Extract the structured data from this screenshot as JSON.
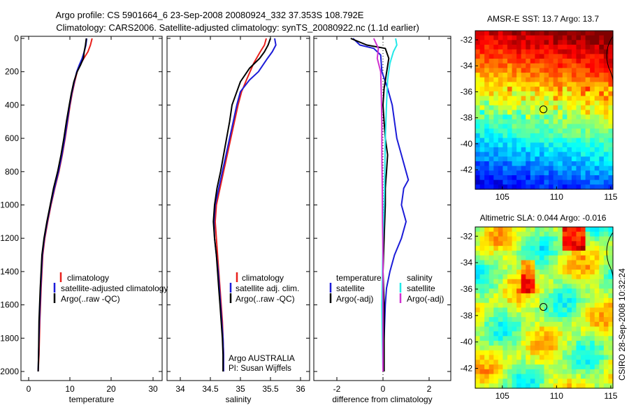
{
  "header": {
    "title_line1": "Argo profile: CS 5901664_6 23-Sep-2008 20080924_332 37.353S 108.792E",
    "title_line2": "Climatology: CARS2006. Satellite-adjusted climatology: synTS_20080922.nc (1.1d earlier)"
  },
  "side_label": "CSIRO 28-Sep-2008 10:32:24",
  "colors": {
    "red": "#e8201c",
    "blue": "#1c1cd8",
    "black": "#000000",
    "cyan": "#22e8e8",
    "magenta": "#d030d0"
  },
  "chart_data": [
    {
      "id": "temperature",
      "type": "line",
      "xlabel": "temperature",
      "ylabel": "",
      "xlim": [
        -2,
        31
      ],
      "ylim": [
        2050,
        0
      ],
      "xticks": [
        "0",
        "10",
        "20",
        "30"
      ],
      "yticks": [
        "0",
        "200",
        "400",
        "600",
        "800",
        "1000",
        "1200",
        "1400",
        "1600",
        "1800",
        "2000"
      ],
      "legend": [
        "climatology",
        "satellite-adjusted climatology",
        "Argo(..raw -QC)"
      ],
      "series": [
        {
          "name": "climatology",
          "color": "red",
          "points": [
            [
              15.3,
              0
            ],
            [
              14.9,
              40
            ],
            [
              14.3,
              80
            ],
            [
              13.3,
              120
            ],
            [
              12.4,
              160
            ],
            [
              11.7,
              200
            ],
            [
              11.1,
              260
            ],
            [
              10.5,
              330
            ],
            [
              10,
              400
            ],
            [
              9.4,
              500
            ],
            [
              8.8,
              600
            ],
            [
              8.1,
              700
            ],
            [
              7.3,
              800
            ],
            [
              6.3,
              900
            ],
            [
              5.4,
              1000
            ],
            [
              4.6,
              1100
            ],
            [
              3.9,
              1200
            ],
            [
              3.4,
              1300
            ],
            [
              3.0,
              1500
            ],
            [
              2.7,
              1700
            ],
            [
              2.5,
              1900
            ],
            [
              2.3,
              2000
            ]
          ]
        },
        {
          "name": "satellite-adjusted climatology",
          "color": "blue",
          "points": [
            [
              14.0,
              0
            ],
            [
              13.8,
              40
            ],
            [
              13.4,
              80
            ],
            [
              12.9,
              120
            ],
            [
              12.2,
              160
            ],
            [
              11.6,
              200
            ],
            [
              11.0,
              260
            ],
            [
              10.4,
              330
            ],
            [
              9.9,
              400
            ],
            [
              9.3,
              500
            ],
            [
              8.7,
              600
            ],
            [
              8.0,
              700
            ],
            [
              7.2,
              800
            ],
            [
              6.2,
              900
            ],
            [
              5.3,
              1000
            ],
            [
              4.5,
              1100
            ],
            [
              3.8,
              1200
            ],
            [
              3.3,
              1300
            ],
            [
              2.9,
              1500
            ],
            [
              2.6,
              1700
            ],
            [
              2.4,
              1900
            ],
            [
              2.3,
              2000
            ]
          ]
        },
        {
          "name": "Argo(..raw -QC)",
          "color": "black",
          "points": [
            [
              13.9,
              0
            ],
            [
              13.7,
              40
            ],
            [
              13.4,
              80
            ],
            [
              13.2,
              120
            ],
            [
              12.5,
              160
            ],
            [
              11.7,
              200
            ],
            [
              10.9,
              260
            ],
            [
              10.3,
              330
            ],
            [
              9.8,
              400
            ],
            [
              9.1,
              500
            ],
            [
              8.5,
              600
            ],
            [
              7.8,
              700
            ],
            [
              7.0,
              800
            ],
            [
              6.0,
              900
            ],
            [
              5.2,
              1000
            ],
            [
              4.4,
              1100
            ],
            [
              3.7,
              1200
            ],
            [
              3.2,
              1300
            ],
            [
              2.8,
              1500
            ],
            [
              2.5,
              1700
            ],
            [
              2.4,
              1900
            ],
            [
              2.3,
              2000
            ]
          ]
        }
      ]
    },
    {
      "id": "salinity",
      "type": "line",
      "xlabel": "salinity",
      "ylabel": "",
      "xlim": [
        33.8,
        36.1
      ],
      "ylim": [
        2050,
        0
      ],
      "xticks": [
        "34",
        "34.5",
        "35",
        "35.5",
        "36"
      ],
      "legend": [
        "climatology",
        "satellite adj. clim.",
        "Argo(..raw -QC)"
      ],
      "annotation": [
        "Argo AUSTRALIA",
        "PI: Susan Wijffels"
      ],
      "series": [
        {
          "name": "climatology",
          "color": "red",
          "points": [
            [
              35.43,
              0
            ],
            [
              35.4,
              40
            ],
            [
              35.33,
              80
            ],
            [
              35.22,
              150
            ],
            [
              35.1,
              250
            ],
            [
              35.02,
              320
            ],
            [
              34.96,
              400
            ],
            [
              34.9,
              500
            ],
            [
              34.84,
              600
            ],
            [
              34.78,
              700
            ],
            [
              34.72,
              800
            ],
            [
              34.66,
              900
            ],
            [
              34.6,
              1000
            ],
            [
              34.58,
              1100
            ],
            [
              34.6,
              1200
            ],
            [
              34.62,
              1300
            ],
            [
              34.64,
              1400
            ],
            [
              34.66,
              1500
            ],
            [
              34.68,
              1600
            ],
            [
              34.7,
              1700
            ],
            [
              34.71,
              1800
            ],
            [
              34.72,
              1900
            ],
            [
              34.72,
              2000
            ]
          ]
        },
        {
          "name": "satellite adj. clim.",
          "color": "blue",
          "points": [
            [
              35.57,
              0
            ],
            [
              35.59,
              40
            ],
            [
              35.53,
              80
            ],
            [
              35.45,
              120
            ],
            [
              35.3,
              200
            ],
            [
              35.15,
              250
            ],
            [
              35.0,
              320
            ],
            [
              34.94,
              400
            ],
            [
              34.88,
              500
            ],
            [
              34.82,
              600
            ],
            [
              34.76,
              700
            ],
            [
              34.7,
              800
            ],
            [
              34.64,
              900
            ],
            [
              34.58,
              1000
            ],
            [
              34.56,
              1100
            ],
            [
              34.57,
              1200
            ],
            [
              34.6,
              1300
            ],
            [
              34.63,
              1400
            ],
            [
              34.65,
              1500
            ],
            [
              34.67,
              1600
            ],
            [
              34.69,
              1700
            ],
            [
              34.71,
              1800
            ],
            [
              34.72,
              1900
            ],
            [
              34.72,
              2000
            ]
          ]
        },
        {
          "name": "Argo(..raw -QC)",
          "color": "black",
          "points": [
            [
              35.5,
              0
            ],
            [
              35.46,
              40
            ],
            [
              35.4,
              80
            ],
            [
              35.32,
              120
            ],
            [
              35.15,
              180
            ],
            [
              35.0,
              260
            ],
            [
              34.93,
              330
            ],
            [
              34.86,
              400
            ],
            [
              34.82,
              500
            ],
            [
              34.77,
              600
            ],
            [
              34.72,
              700
            ],
            [
              34.67,
              800
            ],
            [
              34.61,
              900
            ],
            [
              34.57,
              1000
            ],
            [
              34.55,
              1100
            ],
            [
              34.57,
              1200
            ],
            [
              34.6,
              1300
            ],
            [
              34.62,
              1400
            ],
            [
              34.64,
              1500
            ],
            [
              34.66,
              1600
            ],
            [
              34.68,
              1700
            ],
            [
              34.7,
              1800
            ],
            [
              34.71,
              1900
            ],
            [
              34.71,
              2000
            ]
          ]
        }
      ]
    },
    {
      "id": "difference",
      "type": "line",
      "xlabel": "difference from climatology",
      "ylabel": "",
      "xlim": [
        -3,
        3
      ],
      "ylim": [
        2050,
        0
      ],
      "xticks": [
        "-2",
        "0",
        "2"
      ],
      "legend_temperature": [
        "temperature",
        "satellite",
        "Argo(-adj)"
      ],
      "legend_salinity": [
        "salinity",
        "satellite",
        "Argo(-adj)"
      ],
      "series": [
        {
          "name": "temperature satellite",
          "color": "blue",
          "points": [
            [
              -1.3,
              0
            ],
            [
              -1.0,
              40
            ],
            [
              -0.4,
              60
            ],
            [
              -0.1,
              100
            ],
            [
              -0.05,
              200
            ],
            [
              0.2,
              300
            ],
            [
              0.4,
              400
            ],
            [
              0.5,
              500
            ],
            [
              0.6,
              600
            ],
            [
              0.8,
              700
            ],
            [
              1.0,
              800
            ],
            [
              1.1,
              850
            ],
            [
              0.9,
              900
            ],
            [
              0.8,
              1000
            ],
            [
              1.0,
              1100
            ],
            [
              0.8,
              1200
            ],
            [
              0.5,
              1300
            ],
            [
              0.3,
              1400
            ],
            [
              0.15,
              1500
            ],
            [
              0.1,
              1600
            ],
            [
              0.05,
              1800
            ],
            [
              0.0,
              2000
            ]
          ]
        },
        {
          "name": "temperature Argo(-adj)",
          "color": "black",
          "points": [
            [
              -1.4,
              0
            ],
            [
              -0.7,
              40
            ],
            [
              0.1,
              60
            ],
            [
              0.25,
              120
            ],
            [
              0.05,
              300
            ],
            [
              0.0,
              400
            ],
            [
              0.05,
              500
            ],
            [
              0.1,
              600
            ],
            [
              0.2,
              700
            ],
            [
              0.15,
              800
            ],
            [
              0.1,
              900
            ],
            [
              0.1,
              1000
            ],
            [
              0.05,
              1200
            ],
            [
              0.0,
              1400
            ],
            [
              0.05,
              1600
            ],
            [
              0.05,
              1800
            ],
            [
              0.05,
              2000
            ]
          ]
        },
        {
          "name": "salinity satellite",
          "color": "cyan",
          "points": [
            [
              0.55,
              0
            ],
            [
              0.6,
              40
            ],
            [
              0.45,
              80
            ],
            [
              0.3,
              150
            ],
            [
              0.2,
              250
            ],
            [
              0.15,
              400
            ],
            [
              0.1,
              600
            ],
            [
              0.08,
              800
            ],
            [
              0.05,
              1000
            ],
            [
              0.0,
              1200
            ],
            [
              -0.02,
              1400
            ],
            [
              -0.05,
              1600
            ],
            [
              -0.03,
              1800
            ],
            [
              0.0,
              2000
            ]
          ]
        },
        {
          "name": "salinity Argo(-adj)",
          "color": "magenta",
          "points": [
            [
              -0.4,
              0
            ],
            [
              -0.2,
              60
            ],
            [
              -0.25,
              120
            ],
            [
              -0.1,
              200
            ],
            [
              -0.08,
              300
            ],
            [
              -0.05,
              500
            ],
            [
              -0.05,
              700
            ],
            [
              -0.03,
              900
            ],
            [
              -0.02,
              1100
            ],
            [
              0.0,
              1300
            ],
            [
              0.0,
              1600
            ],
            [
              0.0,
              2000
            ]
          ]
        }
      ]
    },
    {
      "id": "sst_map",
      "type": "heatmap",
      "title": "AMSR-E SST: 13.7 Argo: 13.7",
      "xticks": [
        "105",
        "110",
        "115"
      ],
      "yticks": [
        "-32",
        "-34",
        "-36",
        "-38",
        "-40",
        "-42"
      ],
      "xlim": [
        102.5,
        115.2
      ],
      "ylim": [
        -43.5,
        -31.3
      ],
      "marker": [
        108.79,
        -37.35
      ]
    },
    {
      "id": "sla_map",
      "type": "heatmap",
      "title": "Altimetric SLA: 0.044 Argo: -0.016",
      "xticks": [
        "105",
        "110",
        "115"
      ],
      "yticks": [
        "-32",
        "-34",
        "-36",
        "-38",
        "-40",
        "-42"
      ],
      "xlim": [
        102.5,
        115.2
      ],
      "ylim": [
        -43.5,
        -31.3
      ],
      "marker": [
        108.79,
        -37.35
      ]
    }
  ]
}
